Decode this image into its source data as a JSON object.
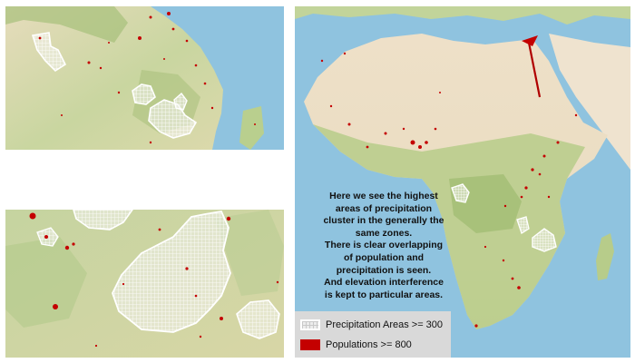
{
  "caption": {
    "lines": [
      "Here we see the highest",
      "areas of precipitation",
      "cluster in the generally the",
      "same zones.",
      "There is clear overlapping",
      "of population and",
      "precipitation is seen.",
      "And elevation interference",
      "is kept to particular areas."
    ]
  },
  "legend": {
    "precipitation_label": "Precipitation Areas >= 300",
    "population_label": "Populations >= 800"
  },
  "colors": {
    "ocean": "#8fc3df",
    "land_green": "#b9cf8e",
    "desert": "#ecdcc4",
    "population": "#c40000",
    "precipitation_outline": "#ffffff",
    "legend_bg": "#d9d9d9"
  }
}
